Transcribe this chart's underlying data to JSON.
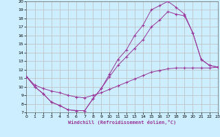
{
  "xlabel": "Windchill (Refroidissement éolien,°C)",
  "bg_color": "#cceeff",
  "grid_color": "#bbbbbb",
  "line_color": "#993399",
  "xlim": [
    0,
    23
  ],
  "ylim": [
    7,
    20
  ],
  "xticks": [
    0,
    1,
    2,
    3,
    4,
    5,
    6,
    7,
    8,
    9,
    10,
    11,
    12,
    13,
    14,
    15,
    16,
    17,
    18,
    19,
    20,
    21,
    22,
    23
  ],
  "yticks": [
    7,
    8,
    9,
    10,
    11,
    12,
    13,
    14,
    15,
    16,
    17,
    18,
    19,
    20
  ],
  "line1_x": [
    0,
    1,
    2,
    3,
    4,
    5,
    6,
    7,
    8,
    9,
    10,
    11,
    12,
    13,
    14,
    15,
    16,
    17,
    18,
    19,
    20,
    21,
    22,
    23
  ],
  "line1_y": [
    11.2,
    10.0,
    9.2,
    8.2,
    7.8,
    7.3,
    7.2,
    7.2,
    8.6,
    9.8,
    11.5,
    13.2,
    14.3,
    16.0,
    17.2,
    19.0,
    19.5,
    20.0,
    19.3,
    18.5,
    16.3,
    13.2,
    12.5,
    12.3
  ],
  "line2_x": [
    0,
    1,
    2,
    3,
    4,
    5,
    6,
    7,
    8,
    9,
    10,
    11,
    12,
    13,
    14,
    15,
    16,
    17,
    18,
    19,
    20,
    21,
    22,
    23
  ],
  "line2_y": [
    11.2,
    10.0,
    9.2,
    8.2,
    7.8,
    7.3,
    7.2,
    7.2,
    8.6,
    9.8,
    11.2,
    12.5,
    13.5,
    14.5,
    15.5,
    17.0,
    17.8,
    18.8,
    18.5,
    18.3,
    16.3,
    13.2,
    12.5,
    12.3
  ],
  "line3_x": [
    0,
    1,
    2,
    3,
    4,
    5,
    6,
    7,
    8,
    9,
    10,
    11,
    12,
    13,
    14,
    15,
    16,
    17,
    18,
    19,
    20,
    21,
    22,
    23
  ],
  "line3_y": [
    11.2,
    10.2,
    9.8,
    9.5,
    9.3,
    9.0,
    8.8,
    8.7,
    9.0,
    9.3,
    9.7,
    10.1,
    10.5,
    10.9,
    11.3,
    11.7,
    11.9,
    12.1,
    12.2,
    12.2,
    12.2,
    12.2,
    12.2,
    12.3
  ]
}
